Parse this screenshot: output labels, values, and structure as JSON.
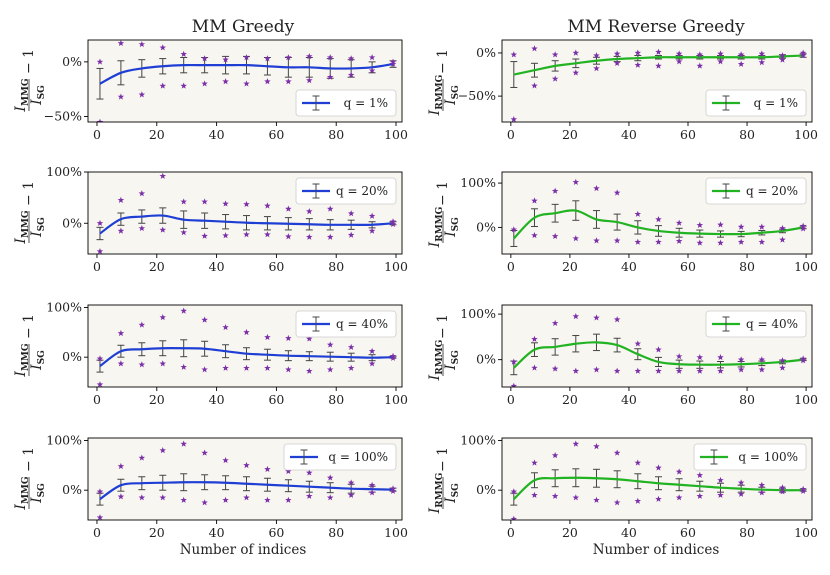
{
  "chart_data": {
    "type": "line",
    "column_titles": [
      "MM Greedy",
      "MM Reverse Greedy"
    ],
    "xlabel": "Number of indices",
    "xlim": [
      -3,
      102
    ],
    "xticks": [
      0,
      20,
      40,
      60,
      80,
      100
    ],
    "x": [
      1,
      8,
      15,
      22,
      29,
      36,
      43,
      50,
      57,
      64,
      71,
      78,
      85,
      92,
      99
    ],
    "colors": {
      "greedy": "#1f3fd4",
      "reverse": "#22b322",
      "star": "#7b2fa8",
      "errorbar": "#444444",
      "face": "#f8f6f1"
    },
    "panels": [
      {
        "row": 0,
        "col": 0,
        "ylabel": {
          "num": "I",
          "num_sub": "MMG",
          "den": "I",
          "den_sub": "SG",
          "suffix": "− 1"
        },
        "ylim": [
          -55,
          20
        ],
        "yticks": [
          -50,
          0
        ],
        "ytick_labels": [
          "−50%",
          "0%"
        ],
        "legend": {
          "label": "q = 1%",
          "pos": "lower-right"
        },
        "mean": [
          -20,
          -10,
          -6,
          -4,
          -3,
          -3,
          -3,
          -3,
          -4,
          -5,
          -5,
          -6,
          -6,
          -5,
          -2
        ],
        "err": [
          14,
          11,
          8,
          7,
          7,
          7,
          8,
          8,
          8,
          9,
          9,
          9,
          8,
          5,
          3
        ],
        "upper": [
          0,
          17,
          16,
          13,
          7,
          3,
          2,
          4,
          3,
          4,
          5,
          4,
          3,
          4,
          0
        ],
        "lower": [
          -55,
          -32,
          -30,
          -22,
          -22,
          -20,
          -18,
          -20,
          -18,
          -18,
          -17,
          -14,
          -12,
          -8,
          -2
        ]
      },
      {
        "row": 0,
        "col": 1,
        "ylabel": {
          "num": "I",
          "num_sub": "RMMG",
          "den": "I",
          "den_sub": "SG",
          "suffix": "− 1"
        },
        "ylim": [
          -80,
          15
        ],
        "yticks": [
          -50,
          0
        ],
        "ytick_labels": [
          "−50%",
          "0%"
        ],
        "legend": {
          "label": "q = 1%",
          "pos": "lower-right"
        },
        "mean": [
          -25,
          -20,
          -15,
          -12,
          -9,
          -7,
          -6,
          -5,
          -5,
          -5,
          -5,
          -5,
          -5,
          -4,
          -3
        ],
        "err": [
          15,
          8,
          6,
          5,
          4,
          3,
          3,
          2,
          2,
          2,
          2,
          2,
          2,
          2,
          2
        ],
        "upper": [
          -2,
          5,
          -2,
          0,
          -3,
          -1,
          0,
          1,
          -1,
          -2,
          -1,
          -2,
          -1,
          -3,
          0
        ],
        "lower": [
          -77,
          -38,
          -30,
          -23,
          -18,
          -12,
          -14,
          -15,
          -10,
          -15,
          -10,
          -13,
          -11,
          -8,
          -3
        ]
      },
      {
        "row": 1,
        "col": 0,
        "ylabel": {
          "num": "I",
          "num_sub": "MMG",
          "den": "I",
          "den_sub": "SG",
          "suffix": "− 1"
        },
        "ylim": [
          -60,
          100
        ],
        "yticks": [
          0,
          100
        ],
        "ytick_labels": [
          "0%",
          "100%"
        ],
        "legend": {
          "label": "q = 20%",
          "pos": "upper-right"
        },
        "mean": [
          -20,
          8,
          13,
          15,
          7,
          5,
          3,
          1,
          0,
          -1,
          -2,
          -3,
          -3,
          -3,
          0
        ],
        "err": [
          12,
          12,
          13,
          15,
          17,
          15,
          14,
          14,
          13,
          12,
          11,
          10,
          9,
          6,
          3
        ],
        "upper": [
          0,
          45,
          58,
          92,
          42,
          42,
          38,
          37,
          34,
          28,
          23,
          28,
          19,
          14,
          3
        ],
        "lower": [
          -55,
          -15,
          -10,
          -13,
          -18,
          -25,
          -24,
          -22,
          -22,
          -26,
          -27,
          -27,
          -23,
          -15,
          -2
        ]
      },
      {
        "row": 1,
        "col": 1,
        "ylabel": {
          "num": "I",
          "num_sub": "RMMG",
          "den": "I",
          "den_sub": "SG",
          "suffix": "− 1"
        },
        "ylim": [
          -60,
          125
        ],
        "yticks": [
          0,
          100
        ],
        "ytick_labels": [
          "0%",
          "100%"
        ],
        "legend": {
          "label": "q = 20%",
          "pos": "upper-right"
        },
        "mean": [
          -25,
          22,
          32,
          38,
          18,
          12,
          0,
          -8,
          -12,
          -14,
          -15,
          -15,
          -12,
          -8,
          0
        ],
        "err": [
          18,
          20,
          20,
          22,
          20,
          18,
          15,
          12,
          10,
          8,
          7,
          6,
          5,
          4,
          3
        ],
        "upper": [
          -5,
          60,
          82,
          102,
          88,
          78,
          30,
          18,
          10,
          5,
          6,
          1,
          1,
          -2,
          3
        ],
        "lower": [
          -65,
          -18,
          -20,
          -25,
          -30,
          -30,
          -33,
          -33,
          -31,
          -35,
          -35,
          -33,
          -33,
          -28,
          -3
        ]
      },
      {
        "row": 2,
        "col": 0,
        "ylabel": {
          "num": "I",
          "num_sub": "MMG",
          "den": "I",
          "den_sub": "SG",
          "suffix": "− 1"
        },
        "ylim": [
          -60,
          105
        ],
        "yticks": [
          0,
          100
        ],
        "ytick_labels": [
          "0%",
          "100%"
        ],
        "legend": {
          "label": "q = 40%",
          "pos": "upper-right"
        },
        "mean": [
          -18,
          12,
          16,
          18,
          18,
          17,
          12,
          7,
          5,
          3,
          2,
          1,
          0,
          -1,
          0
        ],
        "err": [
          12,
          12,
          13,
          15,
          17,
          15,
          13,
          12,
          11,
          10,
          9,
          9,
          8,
          6,
          2
        ],
        "upper": [
          -3,
          48,
          65,
          80,
          93,
          75,
          60,
          50,
          40,
          38,
          37,
          25,
          20,
          12,
          2
        ],
        "lower": [
          -55,
          -13,
          -15,
          -13,
          -20,
          -25,
          -22,
          -22,
          -22,
          -25,
          -28,
          -25,
          -22,
          -13,
          -2
        ]
      },
      {
        "row": 2,
        "col": 1,
        "ylabel": {
          "num": "I",
          "num_sub": "RMMG",
          "den": "I",
          "den_sub": "SG",
          "suffix": "− 1"
        },
        "ylim": [
          -60,
          120
        ],
        "yticks": [
          0,
          100
        ],
        "ytick_labels": [
          "0%",
          "100%"
        ],
        "legend": {
          "label": "q = 40%",
          "pos": "upper-right"
        },
        "mean": [
          -18,
          22,
          28,
          35,
          38,
          32,
          12,
          -5,
          -10,
          -11,
          -11,
          -10,
          -8,
          -5,
          0
        ],
        "err": [
          15,
          15,
          18,
          18,
          18,
          15,
          12,
          10,
          9,
          8,
          7,
          6,
          5,
          4,
          2
        ],
        "upper": [
          -5,
          45,
          80,
          95,
          92,
          88,
          35,
          22,
          7,
          5,
          5,
          0,
          0,
          -2,
          2
        ],
        "lower": [
          -58,
          -18,
          -20,
          -25,
          -22,
          -25,
          -25,
          -25,
          -25,
          -25,
          -25,
          -22,
          -22,
          -18,
          -2
        ]
      },
      {
        "row": 3,
        "col": 0,
        "ylabel": {
          "num": "I",
          "num_sub": "MMG",
          "den": "I",
          "den_sub": "SG",
          "suffix": "− 1"
        },
        "ylim": [
          -60,
          105
        ],
        "yticks": [
          0,
          100
        ],
        "ytick_labels": [
          "0%",
          "100%"
        ],
        "legend": {
          "label": "q = 100%",
          "pos": "upper-right"
        },
        "mean": [
          -18,
          10,
          14,
          15,
          16,
          16,
          15,
          13,
          11,
          9,
          7,
          5,
          3,
          2,
          1
        ],
        "err": [
          12,
          12,
          13,
          15,
          17,
          15,
          14,
          14,
          13,
          12,
          11,
          10,
          9,
          6,
          3
        ],
        "upper": [
          -3,
          48,
          65,
          80,
          93,
          75,
          60,
          50,
          42,
          38,
          35,
          25,
          15,
          10,
          3
        ],
        "lower": [
          -55,
          -13,
          -15,
          -15,
          -20,
          -25,
          -20,
          -15,
          -20,
          -20,
          -12,
          -15,
          -10,
          -5,
          -2
        ]
      },
      {
        "row": 3,
        "col": 1,
        "ylabel": {
          "num": "I",
          "num_sub": "RMMG",
          "den": "I",
          "den_sub": "SG",
          "suffix": "− 1"
        },
        "ylim": [
          -60,
          105
        ],
        "yticks": [
          0,
          100
        ],
        "ytick_labels": [
          "0%",
          "100%"
        ],
        "legend": {
          "label": "q = 100%",
          "pos": "upper-right"
        },
        "mean": [
          -18,
          20,
          24,
          25,
          24,
          22,
          18,
          14,
          11,
          8,
          5,
          3,
          1,
          0,
          0
        ],
        "err": [
          12,
          15,
          17,
          18,
          18,
          17,
          15,
          13,
          12,
          10,
          9,
          7,
          5,
          4,
          2
        ],
        "upper": [
          -3,
          55,
          70,
          93,
          88,
          75,
          55,
          45,
          37,
          30,
          20,
          15,
          10,
          5,
          2
        ],
        "lower": [
          -58,
          -10,
          -12,
          -15,
          -20,
          -25,
          -22,
          -18,
          -15,
          -12,
          -10,
          -8,
          -5,
          -3,
          -2
        ]
      }
    ]
  }
}
